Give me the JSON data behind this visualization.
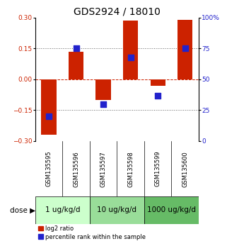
{
  "title": "GDS2924 / 18010",
  "samples": [
    "GSM135595",
    "GSM135596",
    "GSM135597",
    "GSM135598",
    "GSM135599",
    "GSM135600"
  ],
  "log2_ratios": [
    -0.27,
    0.135,
    -0.1,
    0.285,
    -0.03,
    0.288
  ],
  "percentile_ranks": [
    20,
    75,
    30,
    68,
    37,
    75
  ],
  "ylim_left": [
    -0.3,
    0.3
  ],
  "ylim_right": [
    0,
    100
  ],
  "yticks_left": [
    -0.3,
    -0.15,
    0,
    0.15,
    0.3
  ],
  "yticks_right": [
    0,
    25,
    50,
    75,
    100
  ],
  "bar_color": "#cc2200",
  "dot_color": "#2222cc",
  "dose_groups": [
    {
      "label": "1 ug/kg/d",
      "samples": [
        0,
        1
      ]
    },
    {
      "label": "10 ug/kg/d",
      "samples": [
        2,
        3
      ]
    },
    {
      "label": "1000 ug/kg/d",
      "samples": [
        4,
        5
      ]
    }
  ],
  "dose_label": "dose",
  "legend_red": "log2 ratio",
  "legend_blue": "percentile rank within the sample",
  "bar_width": 0.55,
  "dot_size": 30,
  "title_fontsize": 10,
  "tick_fontsize": 6.5,
  "sample_fontsize": 6,
  "dose_fontsize": 7.5,
  "legend_fontsize": 6,
  "background_color": "#ffffff",
  "plot_bg_color": "#ffffff",
  "zero_line_color": "#cc2200",
  "sample_bg_color": "#cccccc",
  "dose_colors": [
    "#ccffcc",
    "#99dd99",
    "#66bb66"
  ]
}
